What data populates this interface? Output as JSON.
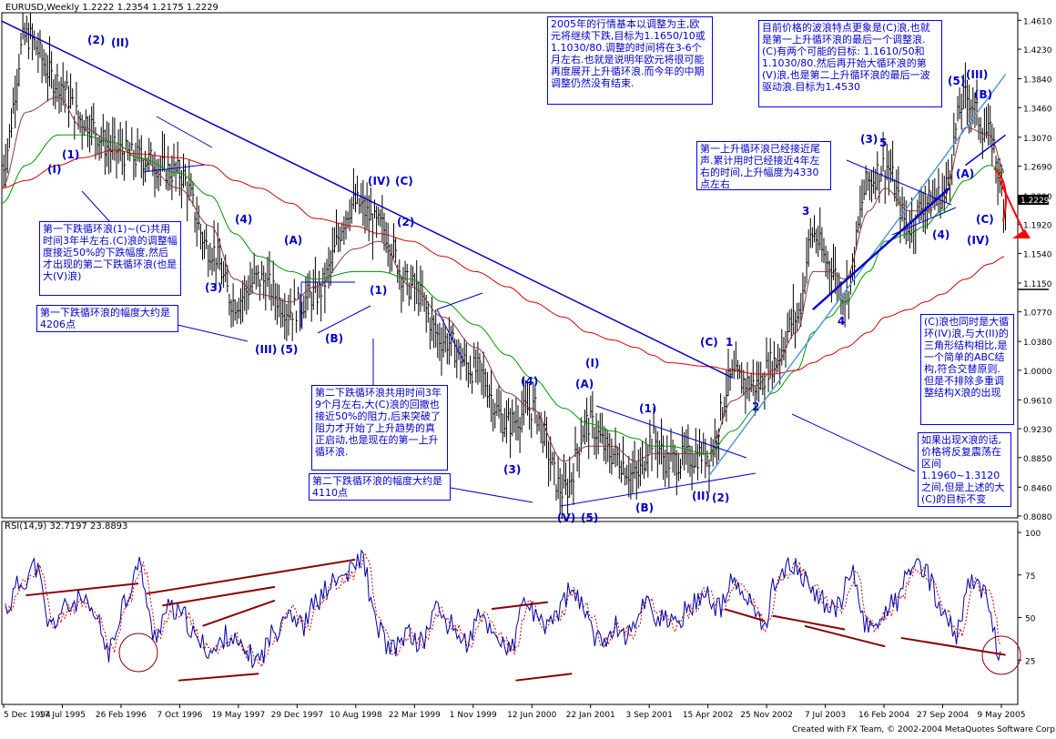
{
  "window": {
    "title": "EURUSD,Weekly",
    "ohlc": "1.2222 1.2354 1.2175 1.2229",
    "rsi_label": "RSI(14,9)",
    "rsi_values": "32.7197 23.8893",
    "footer": "Created with FX Team, © 2002-2004 MetaQuotes Software Corp."
  },
  "notes": [
    "2005年的行情基本以调整为主,欧元将继续下跌,目标为1.1650/10或1.1030/80.调整的时间将在3-6个月左右.也就是说明年欧元将很可能再度展开上升循环浪.而今年的中期调整仍然没有结束.",
    "目前价格的波浪特点更象是(C)浪,也就是第一上升循环浪的最后一个调整浪.(C)有两个可能的目标: 1.1610/50和1.1030/80.然后再开始大循环浪的第(V)浪,也是第二上升循环浪的最后一波驱动浪.目标为1.4530",
    "第一上升循环浪已经接近尾声.累计用时已经接近4年左右的时间,上升幅度为4330点左右",
    "第一下跌循环浪(1)~(C)共用时间3年半左右.(C)浪的调整幅度接近50%的下跌幅度,然后才出现的第二下跌循环浪(也是大(V)浪)",
    "第一下跌循环浪的幅度大约是4206点",
    "第二下跌循环浪共用时间3年9个月左右,大(C)浪的回撤也接近50%的阻力,后来突破了阻力才开始了上升趋势的真正启动,也是现在的第一上升循环浪.",
    "第二下跌循环浪的幅度大约是4110点",
    "(C)浪也同时是大循环(IV)浪,与大(II)的三角形结构相比,是一个简单的ABC结构,符合交替原则.    但是不排除多重调整结构X浪的出现",
    "如果出现X浪的话,价格将反复震荡在区间1.1960~1.3120之间,但是上述的大(C)的目标不变"
  ],
  "wave_labels": [
    "(2)",
    "(II)",
    "(1)",
    "(I)",
    "(4)",
    "(3)",
    "(III)",
    "(5)",
    "(A)",
    "(B)",
    "(IV)",
    "(C)",
    "(2)",
    "(1)",
    "(4)",
    "(3)",
    "(I)",
    "(A)",
    "(1)",
    "(V)",
    "(5)",
    "(B)",
    "(II)",
    "(2)",
    "(C)",
    "1",
    "2",
    "3",
    "4",
    "(3)",
    "5",
    "(5)",
    "(III)",
    "(B)",
    "(A)",
    "(4)",
    "(C)",
    "(IV)"
  ],
  "colors": {
    "price_bars": "#000000",
    "ma_fast": "#8b3a3a",
    "ma_mid": "#009900",
    "ma_slow": "#dd0000",
    "trendline": "#0000cc",
    "trendline_light": "#5599dd",
    "rsi": "#0000aa",
    "rsi_signal": "#cc0000",
    "divergence": "#8b0000",
    "wave_label": "#0000cc",
    "forecast": "#ff0000"
  },
  "chart_data": {
    "type": "line",
    "title": "EURUSD,Weekly",
    "symbol": "EURUSD",
    "timeframe": "Weekly",
    "last_bar": {
      "open": 1.2222,
      "high": 1.2354,
      "low": 1.2175,
      "close": 1.2229
    },
    "current_price_label": "1.2229",
    "x_ticks": [
      "5 Dec 1994",
      "17 Jul 1995",
      "26 Feb 1996",
      "7 Oct 1996",
      "19 May 1997",
      "29 Dec 1997",
      "10 Aug 1998",
      "22 Mar 1999",
      "1 Nov 1999",
      "12 Jun 2000",
      "22 Jan 2001",
      "3 Sep 2001",
      "15 Apr 2002",
      "25 Nov 2002",
      "7 Jul 2003",
      "16 Feb 2004",
      "27 Sep 2004",
      "9 May 2005"
    ],
    "y_ticks": [
      "1.4610",
      "1.4230",
      "1.3840",
      "1.3460",
      "1.3070",
      "1.2690",
      "1.2300",
      "1.1920",
      "1.1540",
      "1.1150",
      "1.0770",
      "1.0380",
      "1.0000",
      "0.9610",
      "0.9230",
      "0.8850",
      "0.8460",
      "0.8080"
    ],
    "ylim": [
      0.808,
      1.471
    ],
    "x": [
      "1994-12",
      "1995-03",
      "1995-07",
      "1995-10",
      "1996-02",
      "1996-05",
      "1996-10",
      "1997-02",
      "1997-05",
      "1997-08",
      "1997-12",
      "1998-03",
      "1998-08",
      "1998-11",
      "1999-03",
      "1999-07",
      "1999-11",
      "2000-03",
      "2000-06",
      "2000-10",
      "2001-01",
      "2001-04",
      "2001-07",
      "2001-09",
      "2001-11",
      "2002-04",
      "2002-07",
      "2002-10",
      "2002-12",
      "2003-03",
      "2003-05",
      "2003-07",
      "2003-09",
      "2003-12",
      "2004-02",
      "2004-05",
      "2004-07",
      "2004-09",
      "2004-12",
      "2005-03",
      "2005-05"
    ],
    "series": [
      {
        "values": [
          1.27,
          1.44,
          1.38,
          1.33,
          1.29,
          1.28,
          1.26,
          1.16,
          1.09,
          1.12,
          1.08,
          1.1,
          1.22,
          1.19,
          1.11,
          1.04,
          1.0,
          0.93,
          0.95,
          0.84,
          0.93,
          0.89,
          0.86,
          0.91,
          0.88,
          0.89,
          0.99,
          0.98,
          1.01,
          1.07,
          1.18,
          1.14,
          1.1,
          1.25,
          1.27,
          1.19,
          1.22,
          1.23,
          1.36,
          1.31,
          1.2229
        ]
      },
      {
        "values": [
          1.24,
          1.34,
          1.36,
          1.32,
          1.3,
          1.28,
          1.24,
          1.19,
          1.12,
          1.1,
          1.09,
          1.11,
          1.16,
          1.17,
          1.11,
          1.07,
          1.03,
          0.97,
          0.95,
          0.88,
          0.9,
          0.9,
          0.88,
          0.89,
          0.89,
          0.89,
          0.96,
          0.98,
          1.0,
          1.05,
          1.13,
          1.13,
          1.12,
          1.21,
          1.24,
          1.21,
          1.21,
          1.22,
          1.32,
          1.31,
          1.26
        ]
      },
      {
        "values": [
          1.22,
          1.27,
          1.31,
          1.31,
          1.3,
          1.28,
          1.26,
          1.23,
          1.18,
          1.15,
          1.13,
          1.12,
          1.13,
          1.13,
          1.12,
          1.09,
          1.06,
          1.02,
          0.99,
          0.95,
          0.93,
          0.92,
          0.91,
          0.9,
          0.9,
          0.89,
          0.92,
          0.95,
          0.97,
          1.0,
          1.05,
          1.07,
          1.09,
          1.13,
          1.17,
          1.18,
          1.19,
          1.21,
          1.25,
          1.27,
          1.26
        ]
      },
      {
        "values": [
          1.24,
          1.25,
          1.27,
          1.28,
          1.29,
          1.285,
          1.28,
          1.27,
          1.25,
          1.24,
          1.22,
          1.2,
          1.19,
          1.18,
          1.17,
          1.15,
          1.13,
          1.11,
          1.09,
          1.07,
          1.05,
          1.04,
          1.03,
          1.02,
          1.01,
          1.005,
          1.0,
          0.995,
          0.995,
          1.0,
          1.01,
          1.02,
          1.03,
          1.05,
          1.07,
          1.08,
          1.09,
          1.1,
          1.12,
          1.14,
          1.15
        ]
      }
    ],
    "trendlines": [
      {
        "from": {
          "x": "1994-12",
          "y": 1.46
        },
        "to": {
          "x": "2002-07",
          "y": 0.99
        }
      },
      {
        "from": {
          "x": "2002-04",
          "y": 0.86
        },
        "to": {
          "x": "2005-05",
          "y": 1.39
        }
      },
      {
        "from": {
          "x": "2003-05",
          "y": 1.08
        },
        "to": {
          "x": "2004-10",
          "y": 1.24
        }
      },
      {
        "from": {
          "x": "2004-12",
          "y": 1.27
        },
        "to": {
          "x": "2005-05",
          "y": 1.31
        }
      }
    ],
    "rsi": {
      "title": "RSI(14,9)",
      "ylim": [
        0,
        100
      ],
      "y_ticks": [
        "100",
        "75",
        "50",
        "25"
      ],
      "last_values": [
        32.7197,
        23.8893
      ],
      "values": [
        55,
        70,
        80,
        45,
        55,
        60,
        50,
        30,
        60,
        80,
        40,
        55,
        50,
        35,
        30,
        40,
        30,
        25,
        40,
        55,
        45,
        60,
        70,
        75,
        85,
        45,
        30,
        40,
        35,
        55,
        45,
        35,
        50,
        40,
        30,
        60,
        45,
        50,
        65,
        55,
        35,
        45,
        40,
        60,
        50,
        45,
        55,
        65,
        55,
        70,
        60,
        45,
        75,
        80,
        70,
        60,
        55,
        75,
        45,
        50,
        60,
        80,
        75,
        55,
        40,
        70,
        65,
        25
      ],
      "divergence_lines": [
        {
          "from": {
            "x": "1995-03",
            "y": 63
          },
          "to": {
            "x": "1996-05",
            "y": 70
          }
        },
        {
          "from": {
            "x": "1996-06",
            "y": 64
          },
          "to": {
            "x": "1998-08",
            "y": 84
          }
        },
        {
          "from": {
            "x": "1996-08",
            "y": 57
          },
          "to": {
            "x": "1997-10",
            "y": 68
          }
        },
        {
          "from": {
            "x": "1997-01",
            "y": 45
          },
          "to": {
            "x": "1997-10",
            "y": 60
          }
        },
        {
          "from": {
            "x": "1996-10",
            "y": 13
          },
          "to": {
            "x": "1997-08",
            "y": 17
          }
        },
        {
          "from": {
            "x": "2000-01",
            "y": 55
          },
          "to": {
            "x": "2000-08",
            "y": 59
          }
        },
        {
          "from": {
            "x": "2000-04",
            "y": 13
          },
          "to": {
            "x": "2000-11",
            "y": 17
          }
        },
        {
          "from": {
            "x": "2002-06",
            "y": 55
          },
          "to": {
            "x": "2002-11",
            "y": 48
          }
        },
        {
          "from": {
            "x": "2002-12",
            "y": 51
          },
          "to": {
            "x": "2003-09",
            "y": 43
          }
        },
        {
          "from": {
            "x": "2003-04",
            "y": 45
          },
          "to": {
            "x": "2004-02",
            "y": 33
          }
        },
        {
          "from": {
            "x": "2004-04",
            "y": 38
          },
          "to": {
            "x": "2005-05",
            "y": 28
          }
        }
      ]
    }
  }
}
